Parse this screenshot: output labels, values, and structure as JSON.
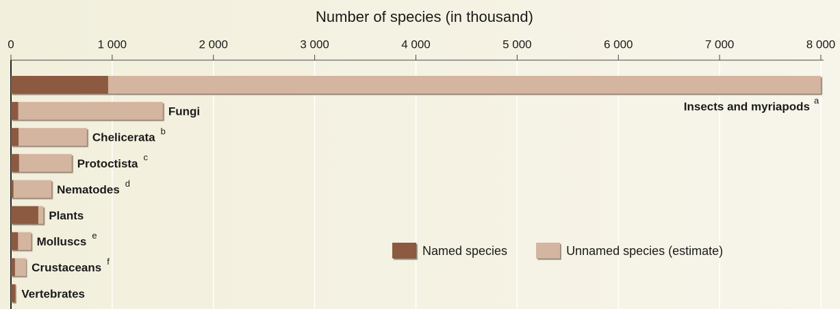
{
  "chart_data": {
    "type": "stacked-barh",
    "title": "Number of species (in thousand)",
    "categories": [
      "Insects and myriapods",
      "Fungi",
      "Chelicerata",
      "Protoctista",
      "Nematodes",
      "Plants",
      "Molluscs",
      "Crustaceans",
      "Vertebrates"
    ],
    "footnotes": [
      "a",
      null,
      "b",
      "c",
      "d",
      null,
      "e",
      "f",
      null
    ],
    "series": [
      {
        "name": "Named species",
        "color": "#8b5a40",
        "values": [
          960,
          72,
          75,
          80,
          25,
          270,
          70,
          40,
          45
        ]
      },
      {
        "name": "Unnamed species (estimate)",
        "color": "#d4b5a0",
        "values": [
          7040,
          1428,
          675,
          520,
          375,
          50,
          130,
          110,
          5
        ]
      }
    ],
    "xlim": [
      0,
      8000
    ],
    "xticks": [
      0,
      {
        "value": 1000,
        "label": "1 000"
      },
      {
        "value": 2000,
        "label": "2 000"
      },
      {
        "value": 3000,
        "label": "3 000"
      },
      {
        "value": 4000,
        "label": "4 000"
      },
      {
        "value": 5000,
        "label": "5 000"
      },
      {
        "value": 6000,
        "label": "6 000"
      },
      {
        "value": 7000,
        "label": "7 000"
      },
      {
        "value": 8000,
        "label": "8 000"
      }
    ],
    "grid": true,
    "legend": "lower right"
  }
}
